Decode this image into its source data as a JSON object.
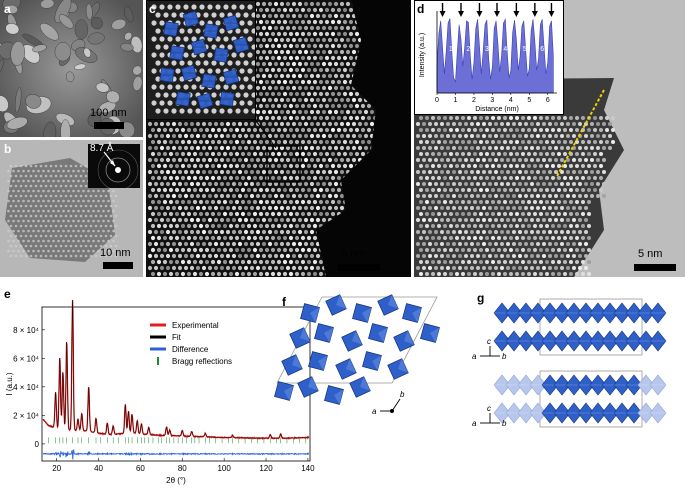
{
  "panels": {
    "a": {
      "label": "a",
      "scale": "100 nm"
    },
    "b": {
      "label": "b",
      "scale": "10 nm",
      "inset_text": "8.7 Å"
    },
    "c": {
      "label": "c",
      "scale": "5 nm"
    },
    "d": {
      "label": "d",
      "scale": "5 nm"
    },
    "e": {
      "label": "e"
    },
    "f": {
      "label": "f",
      "axes": {
        "a": "a",
        "b": "b"
      }
    },
    "g": {
      "label": "g",
      "axes": {
        "c": "c",
        "a": "a",
        "b": "b"
      }
    }
  },
  "colors": {
    "experimental": "#e02020",
    "fit": "#000000",
    "difference": "#2a62d6",
    "bragg": "#1a8a2a",
    "octa_dark": "#2f5fc8",
    "octa_light": "#b7c7ec",
    "profile": "#6b6fd6"
  },
  "chart_data": [
    {
      "type": "line",
      "panel": "d-inset",
      "title": "",
      "xlabel": "Distance (nm)",
      "ylabel": "Intensity (a.u.)",
      "xlim": [
        0,
        6.5
      ],
      "xticks": [
        0,
        1,
        2,
        3,
        4,
        5,
        6
      ],
      "x": [
        0,
        0.1,
        0.2,
        0.3,
        0.4,
        0.5,
        0.6,
        0.7,
        0.8,
        0.9,
        1.0,
        1.1,
        1.2,
        1.3,
        1.4,
        1.5,
        1.6,
        1.7,
        1.8,
        1.9,
        2.0,
        2.1,
        2.2,
        2.3,
        2.4,
        2.5,
        2.6,
        2.7,
        2.8,
        2.9,
        3.0,
        3.1,
        3.2,
        3.3,
        3.4,
        3.5,
        3.6,
        3.7,
        3.8,
        3.9,
        4.0,
        4.1,
        4.2,
        4.3,
        4.4,
        4.5,
        4.6,
        4.7,
        4.8,
        4.9,
        5.0,
        5.1,
        5.2,
        5.3,
        5.4,
        5.5,
        5.6,
        5.7,
        5.8,
        5.9,
        6.0,
        6.1,
        6.2,
        6.3
      ],
      "values": [
        0.35,
        0.78,
        0.95,
        0.6,
        0.25,
        0.55,
        0.92,
        0.98,
        0.55,
        0.2,
        0.15,
        0.55,
        0.9,
        0.7,
        0.35,
        0.6,
        0.95,
        0.93,
        0.5,
        0.18,
        0.4,
        0.85,
        0.97,
        0.62,
        0.25,
        0.55,
        0.9,
        0.96,
        0.45,
        0.18,
        0.35,
        0.85,
        0.95,
        0.65,
        0.28,
        0.5,
        0.92,
        0.97,
        0.55,
        0.2,
        0.3,
        0.8,
        0.96,
        0.7,
        0.3,
        0.48,
        0.88,
        0.95,
        0.58,
        0.22,
        0.32,
        0.82,
        0.97,
        0.68,
        0.3,
        0.45,
        0.9,
        0.97,
        0.6,
        0.25,
        0.4,
        0.88,
        0.95,
        0.5
      ],
      "peak_labels": [
        "1",
        "2",
        "3",
        "4",
        "5",
        "6"
      ],
      "peak_x": [
        0.75,
        1.7,
        2.7,
        3.7,
        4.75,
        5.7
      ],
      "arrow_x": [
        0.3,
        1.3,
        2.3,
        3.25,
        4.3,
        5.3,
        6.2
      ]
    },
    {
      "type": "line",
      "panel": "e",
      "title": "",
      "xlabel": "2θ (°)",
      "ylabel": "I (a.u.)",
      "xlim": [
        13,
        141
      ],
      "ylim": [
        -12000.0,
        96000.0
      ],
      "xticks": [
        20,
        40,
        60,
        80,
        100,
        120,
        140
      ],
      "yticks": [
        0,
        20000,
        40000,
        60000,
        80000
      ],
      "ytick_labels": [
        "0",
        "2 × 10⁴",
        "4 × 10⁴",
        "6 × 10⁴",
        "8 × 10⁴"
      ],
      "baseline": [
        [
          13,
          18000
        ],
        [
          16,
          13000
        ],
        [
          20,
          11000
        ],
        [
          25,
          10000
        ],
        [
          30,
          9500
        ],
        [
          35,
          9000
        ],
        [
          40,
          7500
        ],
        [
          45,
          6500
        ],
        [
          50,
          7000
        ],
        [
          55,
          8000
        ],
        [
          60,
          7000
        ],
        [
          65,
          6500
        ],
        [
          70,
          6000
        ],
        [
          80,
          5500
        ],
        [
          90,
          5000
        ],
        [
          100,
          4500
        ],
        [
          110,
          4200
        ],
        [
          120,
          4000
        ],
        [
          130,
          4000
        ],
        [
          140,
          4500
        ]
      ],
      "peaks": [
        [
          19.5,
          25000
        ],
        [
          21.5,
          50000
        ],
        [
          23.0,
          40000
        ],
        [
          24.8,
          62000
        ],
        [
          27.6,
          91000
        ],
        [
          30.2,
          8000
        ],
        [
          32.0,
          12000
        ],
        [
          35.3,
          31000
        ],
        [
          38.8,
          10000
        ],
        [
          44.2,
          8000
        ],
        [
          47.0,
          6000
        ],
        [
          52.8,
          20000
        ],
        [
          54.3,
          15000
        ],
        [
          56.0,
          13000
        ],
        [
          58.5,
          9000
        ],
        [
          60.5,
          7000
        ],
        [
          64.0,
          5000
        ],
        [
          72.5,
          6000
        ],
        [
          74.0,
          4000
        ],
        [
          80.0,
          4000
        ],
        [
          84.5,
          3500
        ],
        [
          91.0,
          2500
        ],
        [
          104.0,
          1500
        ],
        [
          122.0,
          2500
        ],
        [
          127.0,
          3000
        ]
      ],
      "difference_offset": -7000,
      "bragg_y": 2500,
      "bragg_positions": [
        16,
        19.5,
        21.5,
        23,
        24.8,
        27.6,
        30.2,
        32,
        35.3,
        38.8,
        41,
        44.2,
        47,
        49.5,
        52.8,
        54.3,
        56,
        58.5,
        60.5,
        62,
        64,
        66,
        68.5,
        70,
        72.5,
        74,
        76,
        78,
        80,
        82,
        84.5,
        86,
        88,
        91,
        93,
        96,
        99,
        102,
        104,
        107,
        110,
        113,
        116,
        119,
        122,
        125,
        127,
        130,
        133,
        136,
        139
      ],
      "legend": [
        "Experimental",
        "Fit",
        "Difference",
        "Bragg reflections"
      ],
      "series": [
        {
          "name": "Experimental",
          "color": "#e02020"
        },
        {
          "name": "Fit",
          "color": "#000000"
        },
        {
          "name": "Difference",
          "color": "#2a62d6"
        },
        {
          "name": "Bragg reflections",
          "color": "#1a8a2a"
        }
      ]
    }
  ]
}
